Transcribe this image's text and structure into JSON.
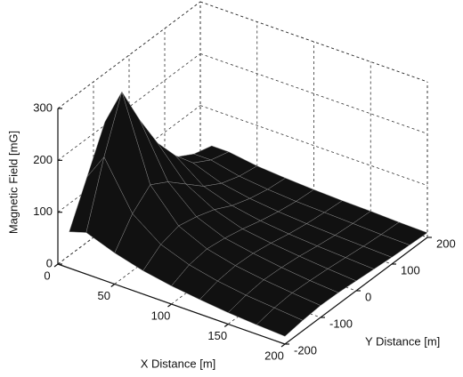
{
  "chart_data": {
    "type": "surface",
    "x_label": "X Distance [m]",
    "y_label": "Y Distance [m]",
    "z_label": "Magnetic Field [mG]",
    "x": [
      10,
      25,
      50,
      75,
      100,
      125,
      150,
      175,
      200
    ],
    "y": [
      -200,
      -150,
      -100,
      -50,
      0,
      50,
      100,
      150,
      200
    ],
    "z": [
      [
        70,
        150,
        230,
        180,
        120,
        90,
        60,
        40,
        30
      ],
      [
        80,
        200,
        300,
        220,
        150,
        100,
        60,
        40,
        30
      ],
      [
        60,
        110,
        140,
        120,
        90,
        60,
        40,
        28,
        22
      ],
      [
        45,
        70,
        80,
        72,
        60,
        42,
        30,
        22,
        18
      ],
      [
        35,
        50,
        55,
        50,
        42,
        32,
        24,
        18,
        15
      ],
      [
        28,
        38,
        42,
        40,
        34,
        26,
        20,
        16,
        13
      ],
      [
        22,
        30,
        34,
        32,
        28,
        22,
        17,
        14,
        12
      ],
      [
        18,
        25,
        28,
        26,
        23,
        19,
        15,
        12,
        10
      ],
      [
        15,
        20,
        23,
        22,
        19,
        16,
        13,
        11,
        9
      ]
    ],
    "color": "#111111",
    "edge_color": "#8a8a8a",
    "xlim": [
      0,
      200
    ],
    "ylim": [
      -200,
      200
    ],
    "zlim": [
      0,
      300
    ],
    "xticks": [
      0,
      50,
      100,
      150,
      200
    ],
    "yticks": [
      -200,
      -100,
      0,
      100,
      200
    ],
    "zticks": [
      0,
      100,
      200,
      300
    ],
    "grid": true
  }
}
